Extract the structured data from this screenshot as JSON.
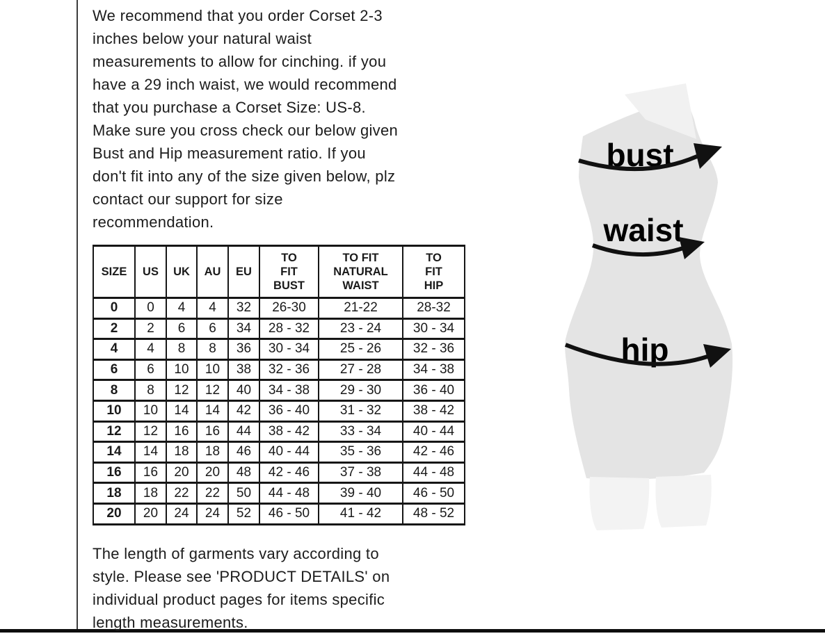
{
  "intro": {
    "text": "We recommend that you order Corset 2-3\ninches below your natural waist\nmeasurements to allow for cinching. if you\nhave a 29 inch waist, we would recommend\nthat you purchase a Corset Size: US-8.\nMake sure you cross check our below given\nBust and Hip measurement ratio. If you\ndon't fit into any of the size given below, plz\ncontact our support for size\nrecommendation."
  },
  "footer": {
    "text": "The length of garments vary according to\nstyle. Please see 'PRODUCT DETAILS'  on\nindividual product pages for items specific\nlength measurements."
  },
  "size_chart": {
    "headers": [
      "SIZE",
      "US",
      "UK",
      "AU",
      "EU",
      "TO\nFIT\nBUST",
      "TO FIT\nNATURAL\nWAIST",
      "TO\nFIT\nHIP"
    ],
    "rows": [
      [
        "0",
        "0",
        "4",
        "4",
        "32",
        "26-30",
        "21-22",
        "28-32"
      ],
      [
        "2",
        "2",
        "6",
        "6",
        "34",
        "28 - 32",
        "23 - 24",
        "30 - 34"
      ],
      [
        "4",
        "4",
        "8",
        "8",
        "36",
        "30 - 34",
        "25 - 26",
        "32 - 36"
      ],
      [
        "6",
        "6",
        "10",
        "10",
        "38",
        "32 - 36",
        "27 - 28",
        "34 - 38"
      ],
      [
        "8",
        "8",
        "12",
        "12",
        "40",
        "34 - 38",
        "29 - 30",
        "36 - 40"
      ],
      [
        "10",
        "10",
        "14",
        "14",
        "42",
        "36 - 40",
        "31 - 32",
        "38 - 42"
      ],
      [
        "12",
        "12",
        "16",
        "16",
        "44",
        "38 - 42",
        "33 - 34",
        "40 - 44"
      ],
      [
        "14",
        "14",
        "18",
        "18",
        "46",
        "40 - 44",
        "35 - 36",
        "42 - 46"
      ],
      [
        "16",
        "16",
        "20",
        "20",
        "48",
        "42 - 46",
        "37 - 38",
        "44 - 48"
      ],
      [
        "18",
        "18",
        "22",
        "22",
        "50",
        "44 - 48",
        "39 - 40",
        "46 - 50"
      ],
      [
        "20",
        "20",
        "24",
        "24",
        "52",
        "46 - 50",
        "41 - 42",
        "48 - 52"
      ]
    ]
  },
  "figure": {
    "bust_label": "bust",
    "waist_label": "waist",
    "hip_label": "hip"
  },
  "colors": {
    "text": "#1a1a1a",
    "table_border": "#161616",
    "mannequin_body": "#e4e4e4",
    "mannequin_light": "#f1f1f1",
    "mannequin_legs": "#f3f3f3",
    "arrow": "#111111"
  }
}
